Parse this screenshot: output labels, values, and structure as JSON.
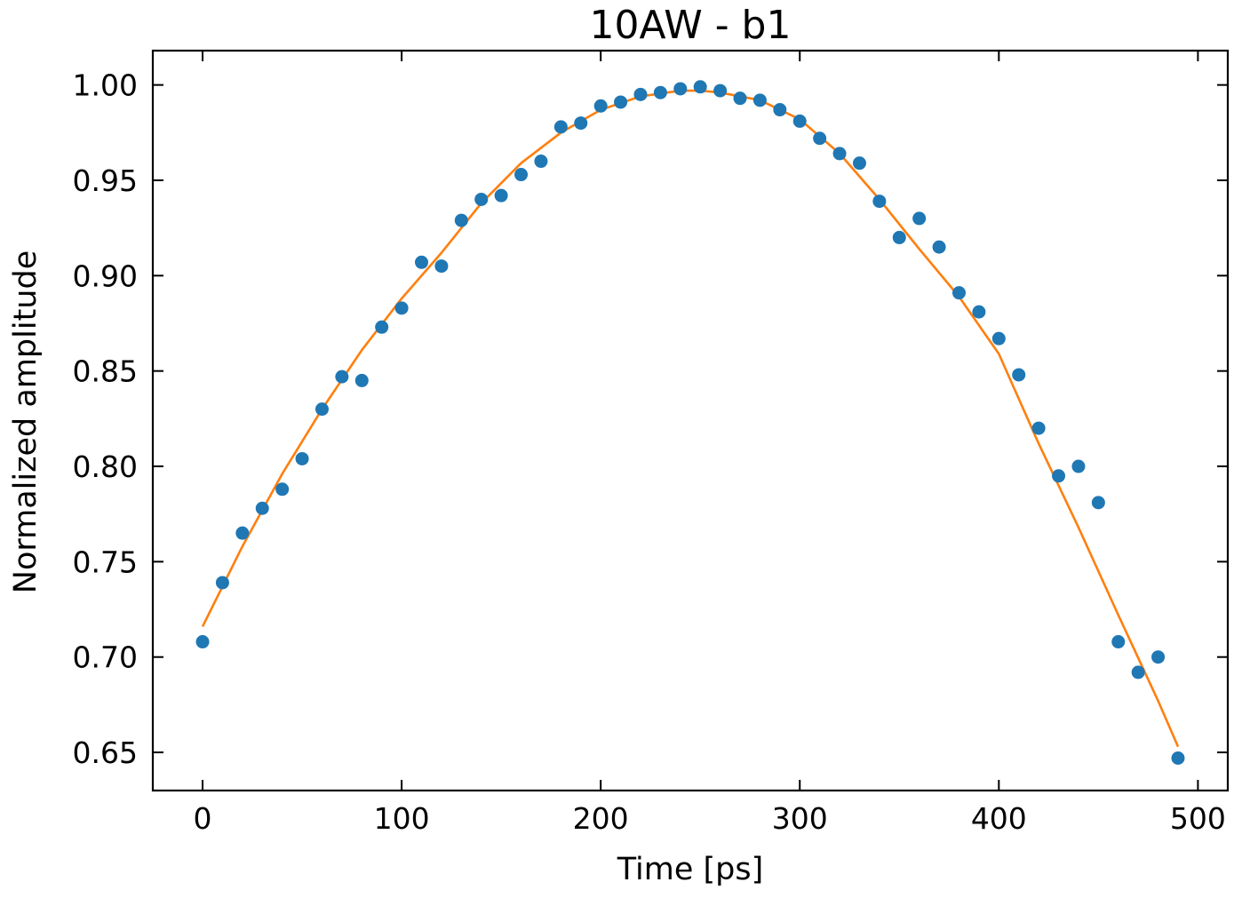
{
  "chart_data": {
    "type": "scatter",
    "title": "10AW - b1",
    "xlabel": "Time [ps]",
    "ylabel": "Normalized amplitude",
    "xlim": [
      -25,
      515
    ],
    "ylim": [
      0.63,
      1.018
    ],
    "x_ticks": [
      0,
      100,
      200,
      300,
      400,
      500
    ],
    "x_tick_labels": [
      "0",
      "100",
      "200",
      "300",
      "400",
      "500"
    ],
    "y_ticks": [
      0.65,
      0.7,
      0.75,
      0.8,
      0.85,
      0.9,
      0.95,
      1.0
    ],
    "y_tick_labels": [
      "0.65",
      "0.70",
      "0.75",
      "0.80",
      "0.85",
      "0.90",
      "0.95",
      "1.00"
    ],
    "grid": false,
    "series": [
      {
        "kind": "scatter",
        "color": "#1f77b4",
        "x": [
          0,
          10,
          20,
          30,
          40,
          50,
          60,
          70,
          80,
          90,
          100,
          110,
          120,
          130,
          140,
          150,
          160,
          170,
          180,
          190,
          200,
          210,
          220,
          230,
          240,
          250,
          260,
          270,
          280,
          290,
          300,
          310,
          320,
          330,
          340,
          350,
          360,
          370,
          380,
          390,
          400,
          410,
          420,
          430,
          440,
          450,
          460,
          470,
          480,
          490
        ],
        "y": [
          0.708,
          0.739,
          0.765,
          0.778,
          0.788,
          0.804,
          0.83,
          0.847,
          0.845,
          0.873,
          0.883,
          0.907,
          0.905,
          0.929,
          0.94,
          0.942,
          0.953,
          0.96,
          0.978,
          0.98,
          0.989,
          0.991,
          0.995,
          0.996,
          0.998,
          0.999,
          0.997,
          0.993,
          0.992,
          0.987,
          0.981,
          0.972,
          0.964,
          0.959,
          0.939,
          0.92,
          0.93,
          0.915,
          0.891,
          0.881,
          0.867,
          0.848,
          0.82,
          0.795,
          0.8,
          0.781,
          0.708,
          0.692,
          0.7,
          0.647
        ]
      },
      {
        "kind": "line",
        "color": "#ff7f0e",
        "x": [
          0,
          20,
          40,
          60,
          80,
          100,
          120,
          140,
          160,
          180,
          200,
          220,
          240,
          250,
          260,
          280,
          300,
          320,
          340,
          360,
          380,
          400,
          420,
          440,
          460,
          480,
          490
        ],
        "y": [
          0.716,
          0.758,
          0.796,
          0.83,
          0.861,
          0.888,
          0.912,
          0.938,
          0.959,
          0.975,
          0.987,
          0.994,
          0.997,
          0.997,
          0.996,
          0.992,
          0.982,
          0.964,
          0.94,
          0.914,
          0.889,
          0.859,
          0.812,
          0.768,
          0.722,
          0.677,
          0.653
        ]
      }
    ]
  }
}
